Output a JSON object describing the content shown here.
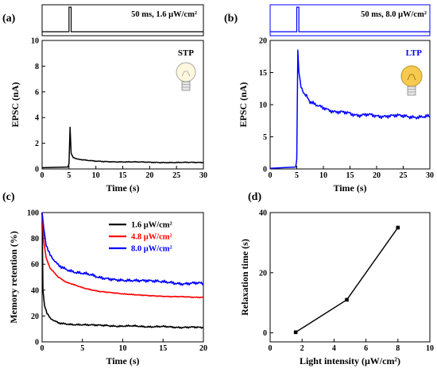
{
  "panels": [
    {
      "letter": "(a)",
      "pulse_label": "50 ms, 1.6 μW/cm²",
      "tag": "STP"
    },
    {
      "letter": "(b)",
      "pulse_label": "50 ms, 8.0 μW/cm²",
      "tag": "LTP"
    },
    {
      "letter": "(c)"
    },
    {
      "letter": "(d)"
    }
  ],
  "chart_data": [
    {
      "type": "line",
      "xlabel": "Time (s)",
      "ylabel": "EPSC (nA)",
      "xlim": [
        0,
        30
      ],
      "ylim": [
        0,
        10
      ],
      "xticks": [
        0,
        5,
        10,
        15,
        20,
        25,
        30
      ],
      "yticks": [
        0,
        2,
        4,
        6,
        8,
        10
      ],
      "color": "#000000",
      "series": [
        {
          "x": [
            0,
            4.8,
            5.0,
            5.2,
            5.4,
            5.8,
            6.5,
            8,
            10,
            15,
            20,
            25,
            30
          ],
          "y": [
            0.1,
            0.15,
            0.4,
            3.25,
            1.2,
            0.9,
            0.78,
            0.68,
            0.6,
            0.55,
            0.52,
            0.5,
            0.5
          ]
        }
      ],
      "pulse": {
        "start": 5.0,
        "width": 0.4
      }
    },
    {
      "type": "line",
      "xlabel": "Time (s)",
      "ylabel": "EPSC (nA)",
      "xlim": [
        0,
        30
      ],
      "ylim": [
        0,
        20
      ],
      "xticks": [
        0,
        5,
        10,
        15,
        20,
        25,
        30
      ],
      "yticks": [
        0,
        5,
        10,
        15,
        20
      ],
      "color": "#0000ff",
      "series": [
        {
          "x": [
            0,
            4.8,
            5.0,
            5.2,
            5.4,
            5.8,
            6.5,
            7.5,
            9,
            11,
            14,
            17,
            20,
            25,
            30
          ],
          "y": [
            0.1,
            0.3,
            1.5,
            18.5,
            15.0,
            13.0,
            11.5,
            10.5,
            9.8,
            9.2,
            8.7,
            8.4,
            8.3,
            8.2,
            8.1
          ]
        }
      ],
      "pulse": {
        "start": 5.0,
        "width": 0.4
      }
    },
    {
      "type": "line",
      "xlabel": "Time (s)",
      "ylabel": "Memory retention (%)",
      "xlim": [
        0,
        20
      ],
      "ylim": [
        0,
        100
      ],
      "xticks": [
        0,
        5,
        10,
        15,
        20
      ],
      "yticks": [
        0,
        20,
        40,
        60,
        80,
        100
      ],
      "legend": "top-right",
      "series": [
        {
          "name": "1.6 μW/cm²",
          "color": "#000000",
          "x": [
            0,
            0.1,
            0.3,
            0.6,
            1,
            2,
            3,
            5,
            8,
            12,
            16,
            20
          ],
          "y": [
            100,
            40,
            28,
            22,
            18,
            15,
            14,
            13,
            12.5,
            12,
            11.5,
            11
          ]
        },
        {
          "name": "4.8 μW/cm²",
          "color": "#ff0000",
          "x": [
            0,
            0.2,
            0.5,
            1,
            2,
            3,
            5,
            7,
            10,
            13,
            16,
            20
          ],
          "y": [
            100,
            78,
            65,
            57,
            50,
            46,
            42,
            39,
            37,
            36,
            35,
            34.5
          ]
        },
        {
          "name": "8.0 μW/cm²",
          "color": "#0000ff",
          "x": [
            0,
            0.2,
            0.5,
            1,
            2,
            3,
            5,
            7,
            10,
            13,
            16,
            20
          ],
          "y": [
            100,
            88,
            75,
            67,
            60,
            56,
            53,
            50,
            48,
            47,
            45.5,
            45
          ]
        }
      ]
    },
    {
      "type": "line",
      "xlabel": "Light intensity (μW/cm²)",
      "ylabel": "Relaxation time (s)",
      "xlim": [
        0,
        10
      ],
      "ylim": [
        -3,
        40
      ],
      "xticks": [
        0,
        2,
        4,
        6,
        8,
        10
      ],
      "yticks": [
        0,
        20,
        40
      ],
      "color": "#000000",
      "series": [
        {
          "x": [
            1.6,
            4.8,
            8.0
          ],
          "y": [
            0.2,
            11,
            35
          ]
        }
      ]
    }
  ]
}
